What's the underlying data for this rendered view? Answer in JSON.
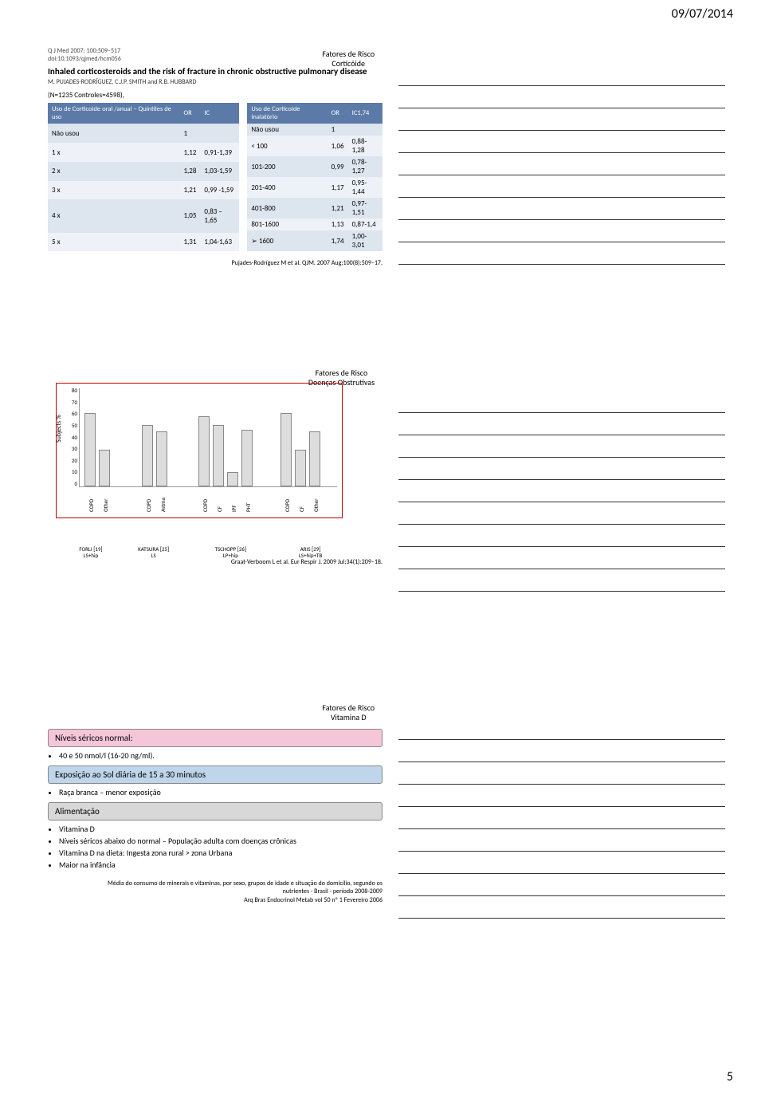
{
  "page": {
    "date": "09/07/2014",
    "number": "5"
  },
  "slide1": {
    "risk_line1": "Fatores de Risco",
    "risk_line2": "Corticóide",
    "journal_ref": "Q J Med 2007; 100:509–517",
    "doi_ref": "doi:10.1093/qjmed/hcm056",
    "article_title": "Inhaled corticosteroids and the risk of fracture in chronic obstructive pulmonary disease",
    "authors": "M. PUJADES-RODRÍGUEZ, C.J.P. SMITH and R.B. HUBBARD",
    "n_text": "(N=1235 Controles=4598),",
    "table_left": {
      "headers": [
        "Uso de Corticoide oral /anual – Quintiles de uso",
        "OR",
        "IC"
      ],
      "rows": [
        [
          "Não usou",
          "1",
          ""
        ],
        [
          "1 x",
          "1,12",
          "0,91-1,39"
        ],
        [
          "2 x",
          "1,28",
          "1,03-1,59"
        ],
        [
          "3 x",
          "1,21",
          "0,99 -1,59"
        ],
        [
          "4 x",
          "1,05",
          "0,83 – 1,65"
        ],
        [
          "5 x",
          "1,31",
          "1,04-1,63"
        ]
      ]
    },
    "table_right": {
      "headers": [
        "Uso de Corticoide inalatório",
        "OR",
        "IC1,74"
      ],
      "rows": [
        [
          "Não usou",
          "1",
          ""
        ],
        [
          "< 100",
          "1,06",
          "0,88-1,28"
        ],
        [
          "101-200",
          "0,99",
          "0,78-1,27"
        ],
        [
          "201-400",
          "1,17",
          "0,95-1,44"
        ],
        [
          "401-800",
          "1,21",
          "0,97-1,51"
        ],
        [
          "801-1600",
          "1,13",
          "0,87-1,4"
        ],
        [
          "➢ 1600",
          "1,74",
          "1,00-3,01"
        ]
      ]
    },
    "citation": "Pujades-Rodríguez M et al. QJM. 2007 Aug;100(8):509–17."
  },
  "slide2": {
    "risk_line1": "Fatores de Risco",
    "risk_line2": "Doenças Obstrutivas",
    "ylabel": "Subjects %",
    "yticks": [
      "80",
      "70",
      "60",
      "50",
      "40",
      "30",
      "20",
      "10",
      "0"
    ],
    "ymax": 80,
    "border_color": "#c00000",
    "bar_fill": "#dddddd",
    "bar_border": "#888888",
    "groups": [
      {
        "left_pct": 2,
        "width_pct": 20,
        "label_line1": "FORLI [19]",
        "label_line2": "LS+hip",
        "bars": [
          {
            "cat": "COPD",
            "val": 60
          },
          {
            "cat": "Other",
            "val": 30
          }
        ]
      },
      {
        "left_pct": 24,
        "width_pct": 20,
        "label_line1": "KATSURA [25]",
        "label_line2": "LS",
        "bars": [
          {
            "cat": "COPD",
            "val": 50
          },
          {
            "cat": "Astma",
            "val": 45
          }
        ]
      },
      {
        "left_pct": 46,
        "width_pct": 30,
        "label_line1": "TSCHOPP [26]",
        "label_line2": "LP+hip",
        "bars": [
          {
            "cat": "COPD",
            "val": 57
          },
          {
            "cat": "CF",
            "val": 50
          },
          {
            "cat": "IPF",
            "val": 12
          },
          {
            "cat": "PHT",
            "val": 46
          }
        ]
      },
      {
        "left_pct": 78,
        "width_pct": 22,
        "label_line1": "ARIS [29]",
        "label_line2": "LS+hip+TB",
        "bars": [
          {
            "cat": "COPD",
            "val": 60
          },
          {
            "cat": "CF",
            "val": 30
          },
          {
            "cat": "Other",
            "val": 45
          }
        ]
      }
    ],
    "citation": "Graat-Verboom L et al. Eur Respir J. 2009 Jul;34(1):209–18."
  },
  "slide3": {
    "risk_line1": "Fatores de Risco",
    "risk_line2": "Vitamina D",
    "sec1_title": "Níveis séricos normal:",
    "sec1_items": [
      "40 e 50 nmol/l (16-20 ng/ml)."
    ],
    "sec2_title": "Exposição ao Sol diária de 15 a 30 minutos",
    "sec2_items": [
      "Raça branca – menor exposição"
    ],
    "sec3_title": "Alimentação",
    "sec3_items": [
      "Vitamina D",
      "Níveis séricos abaixo do normal – População adulta com doenças crônicas",
      "Vitamina D na dieta: Ingesta zona rural > zona Urbana",
      "Maior na infância"
    ],
    "footer_line1": "Média do consumo de minerais e vitaminas, por sexo, grupos de idade e situação do domicílio, segundo os",
    "footer_line2": "nutrientes - Brasil - período 2008-2009",
    "footer_line3": "Arq Bras Endocrinol Metab vol 50 nº 1 Fevereiro 2006"
  },
  "notes": {
    "line_count": 9
  }
}
